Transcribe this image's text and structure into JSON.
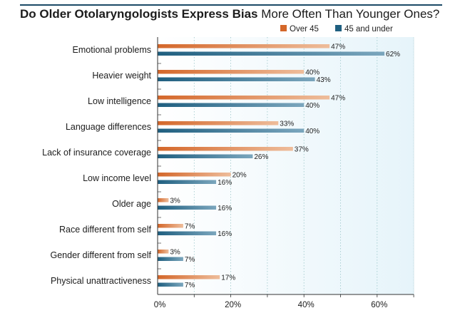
{
  "chart_data": {
    "type": "bar",
    "orientation": "horizontal",
    "title_bold": "Do Older Otolaryngologists Express Bias",
    "title_rest": "More Often Than Younger Ones?",
    "categories": [
      "Emotional problems",
      "Heavier weight",
      "Low intelligence",
      "Language differences",
      "Lack of insurance coverage",
      "Low income level",
      "Older age",
      "Race different from self",
      "Gender different from self",
      "Physical unattractiveness"
    ],
    "series": [
      {
        "name": "Over 45",
        "color": "#d4672a",
        "values": [
          47,
          40,
          47,
          33,
          37,
          20,
          3,
          7,
          3,
          17
        ]
      },
      {
        "name": "45 and under",
        "color": "#1f5f80",
        "values": [
          62,
          43,
          40,
          40,
          26,
          16,
          16,
          16,
          7,
          7
        ]
      }
    ],
    "value_suffix": "%",
    "xlim": [
      0,
      70
    ],
    "xticks": [
      0,
      20,
      40,
      60
    ],
    "xtick_labels": [
      "0%",
      "20%",
      "40%",
      "60%"
    ],
    "gridlines": true,
    "legend_position": "top-right"
  }
}
